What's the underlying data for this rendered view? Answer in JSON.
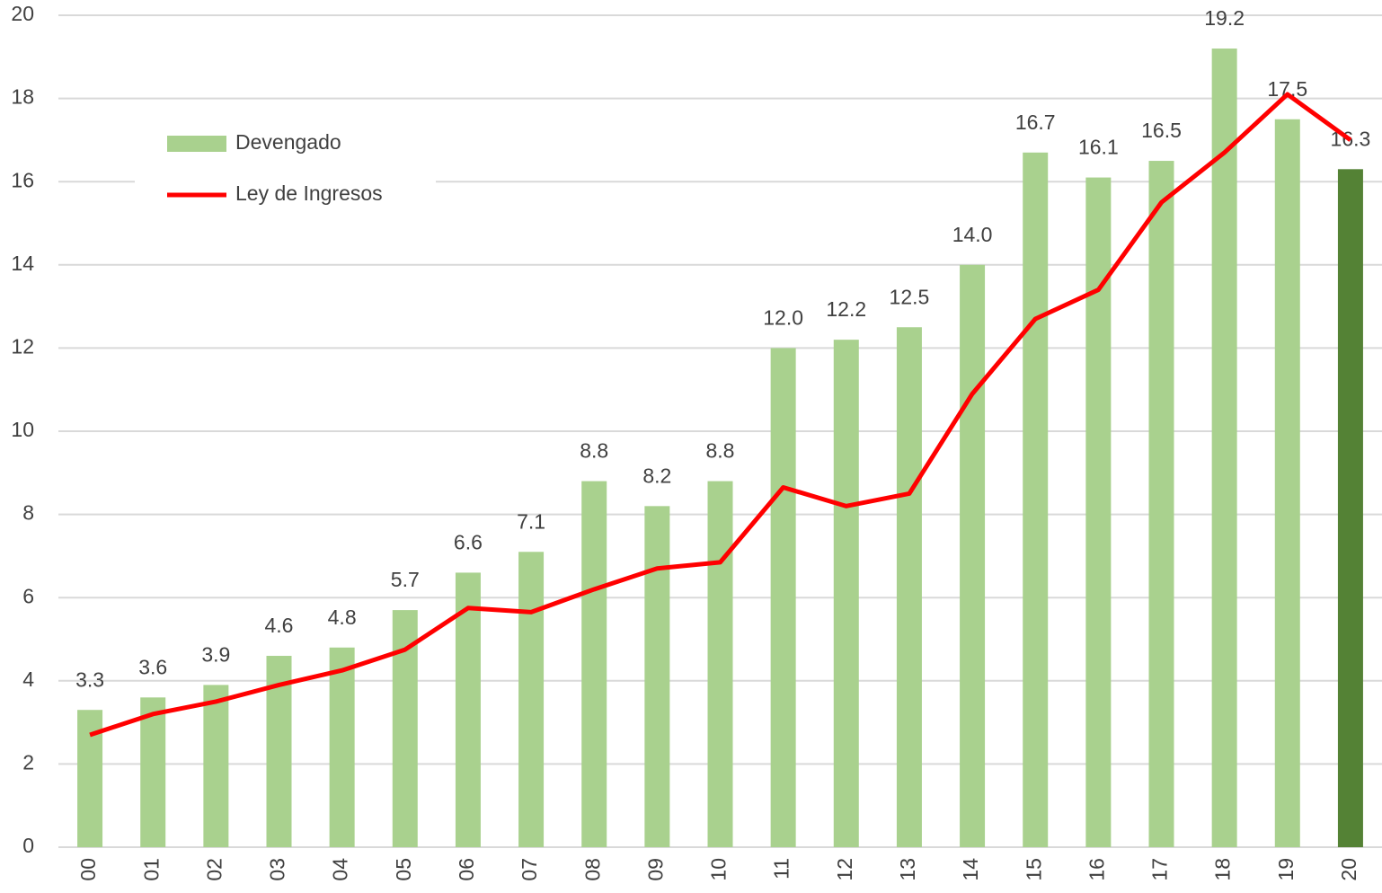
{
  "chart_data": {
    "type": "bar_line",
    "categories": [
      "00",
      "01",
      "02",
      "03",
      "04",
      "05",
      "06",
      "07",
      "08",
      "09",
      "10",
      "11",
      "12",
      "13",
      "14",
      "15",
      "16",
      "17",
      "18",
      "19",
      "20"
    ],
    "series": [
      {
        "name": "Devengado",
        "type": "bar",
        "color": "#a9d18e",
        "colors": [
          "#a9d18e",
          "#a9d18e",
          "#a9d18e",
          "#a9d18e",
          "#a9d18e",
          "#a9d18e",
          "#a9d18e",
          "#a9d18e",
          "#a9d18e",
          "#a9d18e",
          "#a9d18e",
          "#a9d18e",
          "#a9d18e",
          "#a9d18e",
          "#a9d18e",
          "#a9d18e",
          "#a9d18e",
          "#a9d18e",
          "#a9d18e",
          "#a9d18e",
          "#548235"
        ],
        "values": [
          3.3,
          3.6,
          3.9,
          4.6,
          4.8,
          5.7,
          6.6,
          7.1,
          8.8,
          8.2,
          8.8,
          12.0,
          12.2,
          12.5,
          14.0,
          16.7,
          16.1,
          16.5,
          19.2,
          17.5,
          16.3
        ],
        "value_labels": [
          "3.3",
          "3.6",
          "3.9",
          "4.6",
          "4.8",
          "5.7",
          "6.6",
          "7.1",
          "8.8",
          "8.2",
          "8.8",
          "12.0",
          "12.2",
          "12.5",
          "14.0",
          "16.7",
          "16.1",
          "16.5",
          "19.2",
          "17.5",
          "16.3"
        ]
      },
      {
        "name": "Ley de Ingresos",
        "type": "line",
        "color": "#ff0000",
        "values": [
          2.7,
          3.2,
          3.5,
          3.9,
          4.25,
          4.75,
          5.75,
          5.65,
          6.2,
          6.7,
          6.85,
          8.65,
          8.2,
          8.5,
          10.9,
          12.7,
          13.4,
          15.5,
          16.7,
          18.1,
          17.0
        ]
      }
    ],
    "ylim": [
      0,
      20
    ],
    "yticks": [
      0,
      2,
      4,
      6,
      8,
      10,
      12,
      14,
      16,
      18,
      20
    ],
    "grid": true,
    "legend": "upper left"
  }
}
